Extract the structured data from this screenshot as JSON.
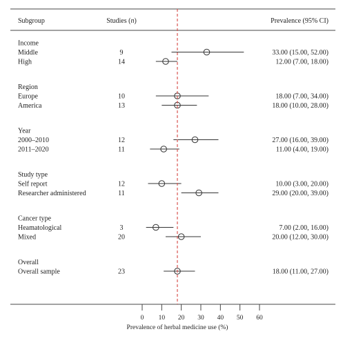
{
  "header": {
    "subgroup": "Subgroup",
    "studies": "Studies (",
    "studies_n": "n",
    "studies_close": ")",
    "prevalence": "Prevalence (95% CI)"
  },
  "chart_data": {
    "type": "forest",
    "xlabel": "Prevalence of herbal medicine use (%)",
    "xlim": [
      0,
      60
    ],
    "xticks": [
      0,
      10,
      20,
      30,
      40,
      50,
      60
    ],
    "reference_line": 18,
    "reference_color": "#d9534f",
    "groups": [
      {
        "name": "Income",
        "rows": [
          {
            "label": "Middle",
            "n": "9",
            "est": 33,
            "lo": 15,
            "hi": 52,
            "text": "33.00 (15.00, 52.00)"
          },
          {
            "label": "High",
            "n": "14",
            "est": 12,
            "lo": 7,
            "hi": 18,
            "text": "12.00 (7.00, 18.00)"
          }
        ]
      },
      {
        "name": "Region",
        "rows": [
          {
            "label": "Europe",
            "n": "10",
            "est": 18,
            "lo": 7,
            "hi": 34,
            "text": "18.00 (7.00, 34.00)"
          },
          {
            "label": "America",
            "n": "13",
            "est": 18,
            "lo": 10,
            "hi": 28,
            "text": "18.00 (10.00, 28.00)"
          }
        ]
      },
      {
        "name": "Year",
        "rows": [
          {
            "label": "2000–2010",
            "n": "12",
            "est": 27,
            "lo": 16,
            "hi": 39,
            "text": "27.00 (16.00, 39.00)"
          },
          {
            "label": "2011–2020",
            "n": "11",
            "est": 11,
            "lo": 4,
            "hi": 19,
            "text": "11.00 (4.00, 19.00)"
          }
        ]
      },
      {
        "name": "Study type",
        "rows": [
          {
            "label": "Self report",
            "n": "12",
            "est": 10,
            "lo": 3,
            "hi": 20,
            "text": "10.00 (3.00, 20.00)"
          },
          {
            "label": "Researcher administered",
            "n": "11",
            "est": 29,
            "lo": 20,
            "hi": 39,
            "text": "29.00 (20.00, 39.00)"
          }
        ]
      },
      {
        "name": "Cancer type",
        "rows": [
          {
            "label": "Heamatological",
            "n": "3",
            "est": 7,
            "lo": 2,
            "hi": 16,
            "text": "7.00 (2.00, 16.00)"
          },
          {
            "label": "Mixed",
            "n": "20",
            "est": 20,
            "lo": 12,
            "hi": 30,
            "text": "20.00 (12.00, 30.00)"
          }
        ]
      },
      {
        "name": "Overall",
        "rows": [
          {
            "label": "Overall sample",
            "n": "23",
            "est": 18,
            "lo": 11,
            "hi": 27,
            "text": "18.00 (11.00, 27.00)"
          }
        ]
      }
    ]
  }
}
